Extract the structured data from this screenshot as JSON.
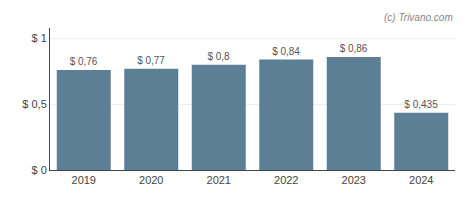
{
  "chart_data": {
    "type": "bar",
    "categories": [
      "2019",
      "2020",
      "2021",
      "2022",
      "2023",
      "2024"
    ],
    "values": [
      0.76,
      0.77,
      0.8,
      0.84,
      0.86,
      0.435
    ],
    "value_labels": [
      "$ 0,76",
      "$ 0,77",
      "$ 0,8",
      "$ 0,84",
      "$ 0,86",
      "$ 0,435"
    ],
    "data_labels": true,
    "color": "#5d7f96",
    "ylim": [
      0,
      1.08
    ],
    "yticks": [
      {
        "value": 0,
        "label": "$ 0"
      },
      {
        "value": 0.5,
        "label": "$ 0,5"
      },
      {
        "value": 1,
        "label": "$ 1"
      }
    ],
    "grid": true,
    "annotation": "(c) Trivano.com"
  }
}
